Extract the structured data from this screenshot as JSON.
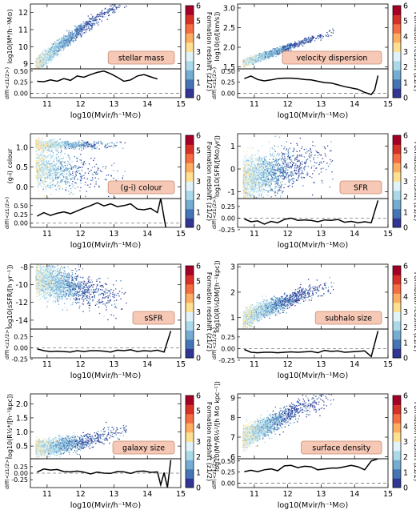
{
  "figure": {
    "xlabel": "log10(Mvir/h⁻¹M⊙)",
    "diff_ylabel": "diff(<z1/2>)",
    "colorbar": {
      "label": "Formation redshift (z1/2)",
      "ticks": [
        "0",
        "1",
        "2",
        "3",
        "4",
        "5",
        "6"
      ],
      "colors": [
        "#313695",
        "#4575b4",
        "#74add1",
        "#abd9e9",
        "#e0f3f8",
        "#fee090",
        "#fdae61",
        "#f46d43",
        "#d73027",
        "#a50026"
      ]
    }
  },
  "chart_data": [
    {
      "type": "scatter",
      "annotation": "stellar mass",
      "ylabel": "log10(M*/h⁻¹M⊙)",
      "xlim": [
        10.5,
        15
      ],
      "ylim": [
        8.7,
        12.5
      ],
      "x_ticks": [
        "11",
        "12",
        "13",
        "14",
        "15"
      ],
      "y_ticks": [
        "9",
        "10",
        "11",
        "12"
      ],
      "y_tick_values": [
        9,
        10,
        11,
        12
      ],
      "diff": {
        "ylim": [
          -0.1,
          0.55
        ],
        "ticks": [
          "0.00",
          "0.25",
          "0.50"
        ],
        "tick_values": [
          0,
          0.25,
          0.5
        ],
        "x": [
          10.7,
          10.9,
          11.1,
          11.3,
          11.5,
          11.7,
          11.9,
          12.1,
          12.3,
          12.5,
          12.7,
          12.9,
          13.1,
          13.3,
          13.5,
          13.7,
          13.9,
          14.1,
          14.3,
          14.5,
          14.7
        ],
        "y": [
          0.27,
          0.26,
          0.3,
          0.27,
          0.33,
          0.29,
          0.39,
          0.36,
          0.42,
          0.47,
          0.5,
          0.44,
          0.36,
          0.27,
          0.3,
          0.39,
          0.42,
          0.37,
          0.32,
          null,
          null
        ]
      }
    },
    {
      "type": "scatter",
      "annotation": "velocity dispersion",
      "ylabel": "log10(σ/[km/s])",
      "xlim": [
        10.5,
        15
      ],
      "ylim": [
        1.45,
        3.1
      ],
      "x_ticks": [
        "11",
        "12",
        "13",
        "14",
        "15"
      ],
      "y_ticks": [
        "1.5",
        "2.0",
        "2.5",
        "3.0"
      ],
      "y_tick_values": [
        1.5,
        2.0,
        2.5,
        3.0
      ],
      "diff": {
        "ylim": [
          -0.1,
          0.55
        ],
        "ticks": [
          "0.00",
          "0.25",
          "0.50"
        ],
        "tick_values": [
          0,
          0.25,
          0.5
        ],
        "x": [
          10.7,
          10.9,
          11.1,
          11.3,
          11.5,
          11.7,
          11.9,
          12.1,
          12.3,
          12.5,
          12.7,
          12.9,
          13.1,
          13.3,
          13.5,
          13.7,
          13.9,
          14.1,
          14.3,
          14.5,
          14.6,
          14.7
        ],
        "y": [
          0.33,
          0.39,
          0.31,
          0.28,
          0.3,
          0.33,
          0.34,
          0.34,
          0.33,
          0.31,
          0.3,
          0.27,
          0.24,
          0.23,
          0.19,
          0.15,
          0.12,
          0.09,
          0.02,
          -0.03,
          0.07,
          0.4
        ]
      }
    },
    {
      "type": "scatter",
      "annotation": "(g-i) colour",
      "ylabel": "(g-i) colour",
      "xlim": [
        10.5,
        15
      ],
      "ylim": [
        -0.3,
        1.35
      ],
      "x_ticks": [
        "11",
        "12",
        "13",
        "14",
        "15"
      ],
      "y_ticks": [
        "0.0",
        "0.5",
        "1.0"
      ],
      "y_tick_values": [
        0,
        0.5,
        1.0
      ],
      "diff": {
        "ylim": [
          -0.12,
          0.7
        ],
        "ticks": [
          "0.00",
          "0.25",
          "0.50"
        ],
        "tick_values": [
          0,
          0.25,
          0.5
        ],
        "x": [
          10.7,
          10.9,
          11.1,
          11.3,
          11.5,
          11.7,
          11.9,
          12.1,
          12.3,
          12.5,
          12.7,
          12.9,
          13.1,
          13.3,
          13.5,
          13.7,
          13.9,
          14.1,
          14.3,
          14.4,
          14.55
        ],
        "y": [
          0.2,
          0.3,
          0.22,
          0.28,
          0.32,
          0.27,
          0.35,
          0.43,
          0.5,
          0.58,
          0.49,
          0.55,
          0.47,
          0.5,
          0.55,
          0.4,
          0.38,
          0.42,
          0.3,
          0.7,
          -0.12
        ]
      }
    },
    {
      "type": "scatter",
      "annotation": "SFR",
      "ylabel": "log10(SFR/[M⊙/yr])",
      "xlim": [
        10.5,
        15
      ],
      "ylim": [
        -1.3,
        1.55
      ],
      "x_ticks": [
        "11",
        "12",
        "13",
        "14",
        "15"
      ],
      "y_ticks": [
        "-1",
        "0",
        "1"
      ],
      "y_tick_values": [
        -1,
        0,
        1
      ],
      "diff": {
        "ylim": [
          -0.2,
          0.42
        ],
        "ticks": [
          "-0.25",
          "0.00",
          "0.25"
        ],
        "tick_values": [
          -0.25,
          0,
          0.25
        ],
        "x": [
          10.7,
          10.9,
          11.1,
          11.3,
          11.5,
          11.7,
          11.9,
          12.1,
          12.3,
          12.5,
          12.7,
          12.9,
          13.1,
          13.3,
          13.5,
          13.7,
          13.9,
          14.1,
          14.3,
          14.5,
          14.7
        ],
        "y": [
          -0.02,
          -0.08,
          -0.06,
          -0.13,
          -0.07,
          -0.1,
          -0.03,
          0.0,
          -0.05,
          -0.04,
          -0.05,
          -0.08,
          -0.04,
          -0.05,
          -0.03,
          -0.09,
          -0.07,
          -0.1,
          -0.08,
          -0.1,
          0.38
        ]
      }
    },
    {
      "type": "scatter",
      "annotation": "sSFR",
      "ylabel": "log10(sSFR/[h yr⁻¹])",
      "xlim": [
        10.5,
        15
      ],
      "ylim": [
        -15,
        -7.7
      ],
      "x_ticks": [
        "11",
        "12",
        "13",
        "14",
        "15"
      ],
      "y_ticks": [
        "-14",
        "-12",
        "-10",
        "-8"
      ],
      "y_tick_values": [
        -14,
        -12,
        -10,
        -8
      ],
      "diff": {
        "ylim": [
          -0.22,
          0.42
        ],
        "ticks": [
          "-0.25",
          "0.00",
          "0.25"
        ],
        "tick_values": [
          -0.25,
          0,
          0.25
        ],
        "x": [
          10.7,
          10.9,
          11.1,
          11.3,
          11.5,
          11.7,
          11.9,
          12.1,
          12.3,
          12.5,
          12.7,
          12.9,
          13.1,
          13.3,
          13.5,
          13.7,
          13.9,
          14.1,
          14.3,
          14.5,
          14.7
        ],
        "y": [
          -0.02,
          -0.06,
          -0.08,
          -0.07,
          -0.08,
          -0.09,
          -0.06,
          -0.08,
          -0.06,
          -0.06,
          -0.07,
          -0.09,
          -0.05,
          -0.06,
          -0.04,
          -0.08,
          -0.06,
          -0.07,
          -0.05,
          -0.09,
          0.38
        ]
      }
    },
    {
      "type": "scatter",
      "annotation": "subhalo size",
      "ylabel": "log10(R½DM/[h⁻¹kpc])",
      "xlim": [
        10.5,
        15
      ],
      "ylim": [
        0.55,
        3.1
      ],
      "x_ticks": [
        "11",
        "12",
        "13",
        "14",
        "15"
      ],
      "y_ticks": [
        "1",
        "2",
        "3"
      ],
      "y_tick_values": [
        1,
        2,
        3
      ],
      "diff": {
        "ylim": [
          -0.2,
          0.42
        ],
        "ticks": [
          "-0.25",
          "0.00",
          "0.25"
        ],
        "tick_values": [
          -0.25,
          0,
          0.25
        ],
        "x": [
          10.7,
          10.9,
          11.1,
          11.3,
          11.5,
          11.7,
          11.9,
          12.1,
          12.3,
          12.5,
          12.7,
          12.9,
          13.1,
          13.3,
          13.5,
          13.7,
          13.9,
          14.1,
          14.3,
          14.5,
          14.7
        ],
        "y": [
          -0.02,
          -0.08,
          -0.09,
          -0.08,
          -0.08,
          -0.09,
          -0.08,
          -0.07,
          -0.08,
          -0.07,
          -0.06,
          -0.09,
          -0.04,
          -0.06,
          -0.05,
          -0.08,
          -0.07,
          -0.06,
          -0.05,
          -0.17,
          0.38
        ]
      }
    },
    {
      "type": "scatter",
      "annotation": "galaxy size",
      "ylabel": "log10(R½*/[h⁻¹kpc])",
      "xlim": [
        10.5,
        15
      ],
      "ylim": [
        0.05,
        2.35
      ],
      "x_ticks": [
        "11",
        "12",
        "13",
        "14",
        "15"
      ],
      "y_ticks": [
        "0.5",
        "1.0",
        "1.5",
        "2.0"
      ],
      "y_tick_values": [
        0.5,
        1.0,
        1.5,
        2.0
      ],
      "diff": {
        "ylim": [
          -0.55,
          0.55
        ],
        "ticks": [
          "-0.25",
          "0.00",
          "0.25"
        ],
        "tick_values": [
          -0.25,
          0,
          0.25
        ],
        "x": [
          10.7,
          10.9,
          11.1,
          11.3,
          11.5,
          11.7,
          11.9,
          12.1,
          12.3,
          12.5,
          12.7,
          12.9,
          13.1,
          13.3,
          13.5,
          13.7,
          13.9,
          14.1,
          14.3,
          14.4,
          14.5,
          14.6,
          14.7
        ],
        "y": [
          0.04,
          0.16,
          0.12,
          0.14,
          0.06,
          0.05,
          0.08,
          0.04,
          -0.03,
          0.04,
          0.0,
          -0.01,
          0.06,
          0.05,
          -0.01,
          0.07,
          0.08,
          0.03,
          0.05,
          -0.45,
          0.02,
          -0.55,
          0.5
        ]
      }
    },
    {
      "type": "scatter",
      "annotation": "surface density",
      "ylabel": "log10(M*/R½²/[h M⊙ kpc⁻²])",
      "xlim": [
        10.5,
        15
      ],
      "ylim": [
        5.9,
        9.2
      ],
      "x_ticks": [
        "11",
        "12",
        "13",
        "14",
        "15"
      ],
      "y_ticks": [
        "6",
        "7",
        "8",
        "9"
      ],
      "y_tick_values": [
        6,
        7,
        8,
        9
      ],
      "diff": {
        "ylim": [
          -0.1,
          0.55
        ],
        "ticks": [
          "0.00",
          "0.25",
          "0.50"
        ],
        "tick_values": [
          0,
          0.25,
          0.5
        ],
        "x": [
          10.7,
          10.9,
          11.1,
          11.3,
          11.5,
          11.7,
          11.9,
          12.1,
          12.3,
          12.5,
          12.7,
          12.9,
          13.1,
          13.3,
          13.5,
          13.7,
          13.9,
          14.1,
          14.3,
          14.5,
          14.7
        ],
        "y": [
          0.26,
          0.29,
          0.26,
          0.3,
          0.32,
          0.28,
          0.39,
          0.4,
          0.35,
          0.38,
          0.37,
          0.3,
          0.32,
          0.34,
          0.34,
          0.37,
          0.4,
          0.37,
          0.3,
          0.5,
          0.55
        ]
      }
    }
  ]
}
